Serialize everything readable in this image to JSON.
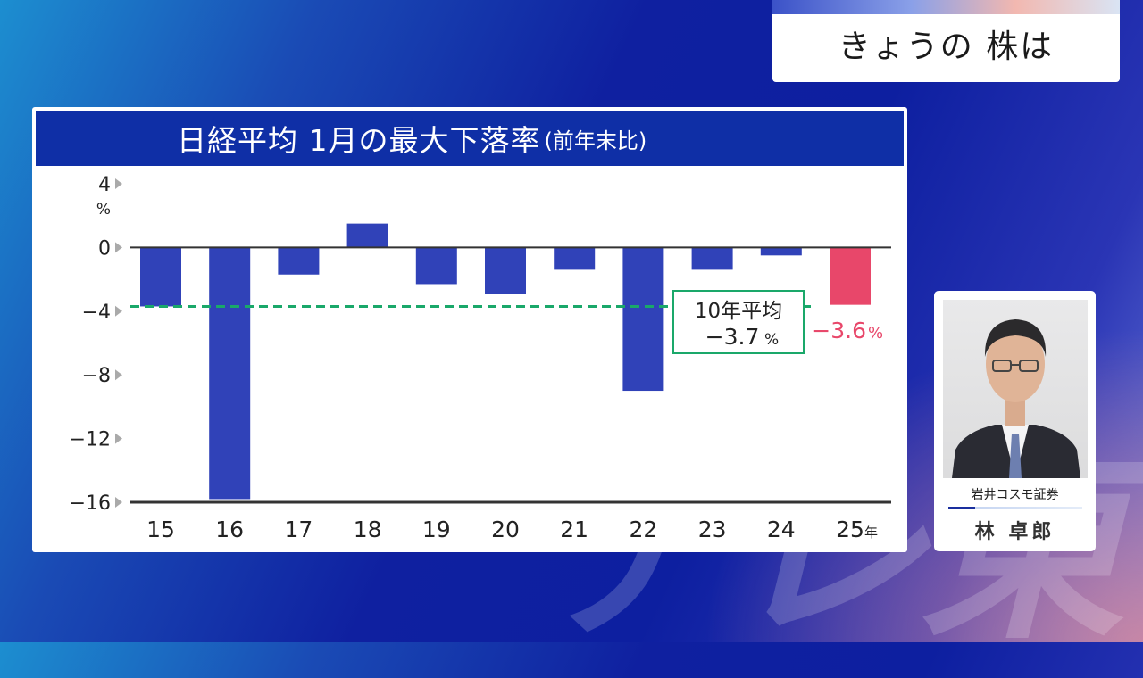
{
  "corner_title": "きょうの 株は",
  "chart_data": {
    "type": "bar",
    "title": "日経平均 1月の最大下落率",
    "subtitle": "(前年末比)",
    "y_unit": "%",
    "x_unit": "年",
    "categories": [
      "15",
      "16",
      "17",
      "18",
      "19",
      "20",
      "21",
      "22",
      "23",
      "24",
      "25"
    ],
    "values": [
      -3.7,
      -15.8,
      -1.7,
      1.5,
      -2.3,
      -2.9,
      -1.4,
      -9.0,
      -1.4,
      -0.5,
      -3.6
    ],
    "highlight_index": 10,
    "highlight_label": "−3.6",
    "highlight_label_unit": "%",
    "colors": {
      "bar": "#3042b8",
      "highlight": "#e8476a",
      "avg_line": "#1aa86a"
    },
    "ylim": [
      -16,
      4
    ],
    "yticks": [
      4,
      0,
      -4,
      -8,
      -12,
      -16
    ],
    "ytick_labels": [
      "4",
      "0",
      "−4",
      "−8",
      "−12",
      "−16"
    ],
    "average": {
      "value": -3.7,
      "label_line1": "10年平均",
      "label_line2": "−3.7",
      "label_unit": "%"
    }
  },
  "analyst": {
    "company": "岩井コスモ証券",
    "name": "林 卓郎"
  }
}
